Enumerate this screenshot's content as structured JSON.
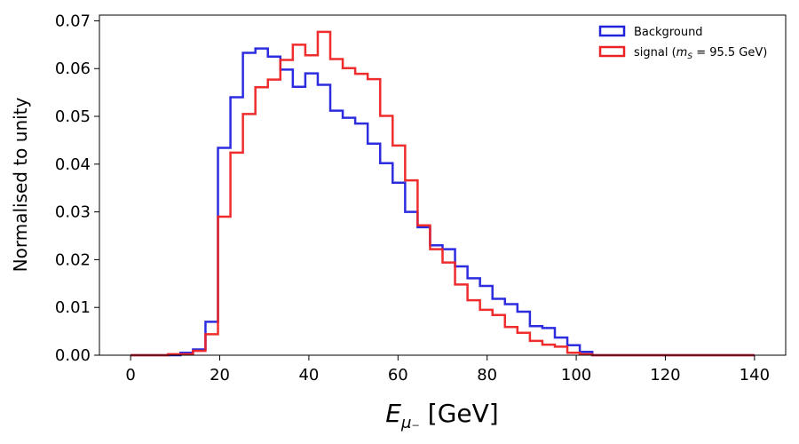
{
  "chart_data": {
    "type": "histogram",
    "xlabel_main": "E",
    "xlabel_sub": "μ₋",
    "xlabel_unit": " [GeV]",
    "ylabel": "Normalised to unity",
    "xlim": [
      -7,
      147
    ],
    "ylim": [
      0,
      0.0712
    ],
    "xticks": [
      0,
      20,
      40,
      60,
      80,
      100,
      120,
      140
    ],
    "xtick_labels": [
      "0",
      "20",
      "40",
      "60",
      "80",
      "100",
      "120",
      "140"
    ],
    "yticks": [
      0.0,
      0.01,
      0.02,
      0.03,
      0.04,
      0.05,
      0.06,
      0.07
    ],
    "ytick_labels": [
      "0.00",
      "0.01",
      "0.02",
      "0.03",
      "0.04",
      "0.05",
      "0.06",
      "0.07"
    ],
    "bin_start": 0,
    "bin_width": 2.8,
    "legend_position": "top-right",
    "series": [
      {
        "name": "Background",
        "legend_label": "Background",
        "color": "#2222dd",
        "values": [
          0,
          0,
          0,
          0,
          0.0005,
          0.0012,
          0.007,
          0.0434,
          0.054,
          0.0633,
          0.0642,
          0.0625,
          0.0598,
          0.0562,
          0.059,
          0.0566,
          0.0512,
          0.0497,
          0.0485,
          0.0443,
          0.0402,
          0.0361,
          0.03,
          0.0268,
          0.023,
          0.0222,
          0.0186,
          0.0161,
          0.0145,
          0.0118,
          0.0107,
          0.0091,
          0.0061,
          0.0057,
          0.0037,
          0.0021,
          0.0007,
          0,
          0,
          0,
          0,
          0,
          0,
          0,
          0,
          0,
          0,
          0,
          0,
          0
        ]
      },
      {
        "name": "signal",
        "legend_label_prefix": "signal (",
        "legend_label_m": "m",
        "legend_label_sub": "S",
        "legend_label_suffix": " = 95.5 GeV)",
        "color": "#ee2222",
        "values": [
          0,
          0,
          0,
          0.0002,
          0.0002,
          0.0009,
          0.0044,
          0.029,
          0.0424,
          0.0505,
          0.0561,
          0.0577,
          0.0618,
          0.065,
          0.0628,
          0.0677,
          0.062,
          0.0601,
          0.0589,
          0.0578,
          0.0501,
          0.0439,
          0.0366,
          0.0272,
          0.0222,
          0.0194,
          0.0148,
          0.0115,
          0.0095,
          0.0084,
          0.0059,
          0.0047,
          0.003,
          0.0022,
          0.0018,
          0.0005,
          0.0002,
          0,
          0,
          0,
          0,
          0,
          0,
          0,
          0,
          0,
          0,
          0,
          0,
          0
        ]
      }
    ]
  }
}
